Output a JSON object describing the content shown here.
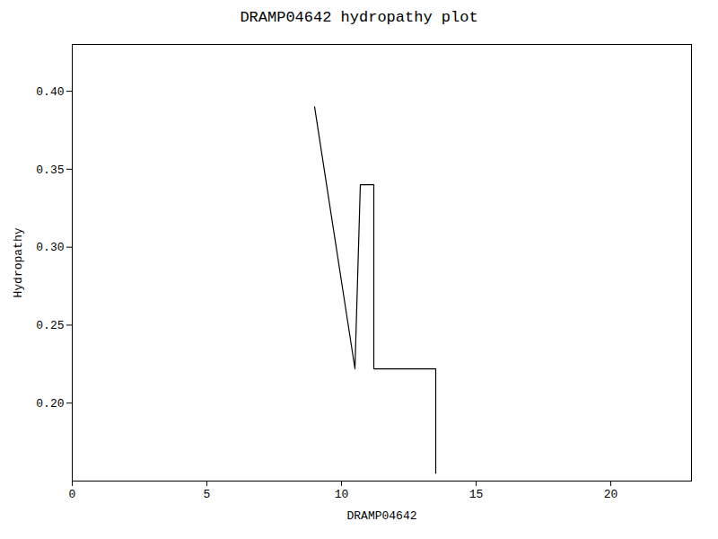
{
  "chart_data": {
    "type": "line",
    "title": "DRAMP04642 hydropathy plot",
    "xlabel": "DRAMP04642",
    "ylabel": "Hydropathy",
    "x": [
      9.0,
      10.5,
      10.5,
      10.7,
      11.2,
      11.2,
      13.5,
      13.5
    ],
    "values": [
      0.39,
      0.222,
      0.222,
      0.34,
      0.34,
      0.222,
      0.222,
      0.155
    ],
    "color": "#000000",
    "xlim": [
      0,
      23
    ],
    "ylim": [
      0.15,
      0.43
    ],
    "xticks": [
      0,
      5,
      10,
      15,
      20
    ],
    "yticks": [
      {
        "value": 0.2,
        "label": "0.20"
      },
      {
        "value": 0.25,
        "label": "0.25"
      },
      {
        "value": 0.3,
        "label": "0.30"
      },
      {
        "value": 0.35,
        "label": "0.35"
      },
      {
        "value": 0.4,
        "label": "0.40"
      }
    ],
    "grid": false
  }
}
